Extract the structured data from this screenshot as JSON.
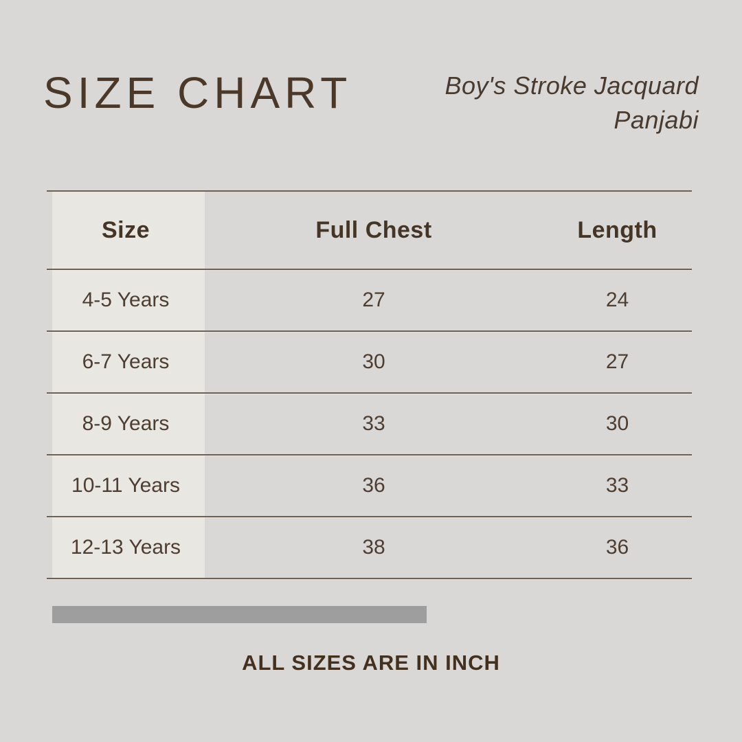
{
  "header": {
    "title": "SIZE CHART",
    "product_line1": "Boy's Stroke Jacquard",
    "product_line2": "Panjabi"
  },
  "table": {
    "columns": [
      "Size",
      "Full Chest",
      "Length"
    ],
    "rows": [
      {
        "size": "4-5 Years",
        "full_chest": "27",
        "length": "24"
      },
      {
        "size": "6-7 Years",
        "full_chest": "30",
        "length": "27"
      },
      {
        "size": "8-9 Years",
        "full_chest": "33",
        "length": "30"
      },
      {
        "size": "10-11 Years",
        "full_chest": "36",
        "length": "33"
      },
      {
        "size": "12-13 Years",
        "full_chest": "38",
        "length": "36"
      }
    ]
  },
  "footer": {
    "note": "ALL SIZES ARE IN INCH"
  },
  "colors": {
    "background": "#d9d8d6",
    "first_column_background": "#e9e7e1",
    "text_brown": "#4b3829",
    "rule_line": "#6e6052",
    "footer_bar_gray": "#9e9e9e"
  },
  "chart_data": {
    "type": "table",
    "title": "SIZE CHART",
    "subtitle": "Boy's Stroke Jacquard Panjabi",
    "columns": [
      "Size",
      "Full Chest",
      "Length"
    ],
    "rows": [
      [
        "4-5 Years",
        27,
        24
      ],
      [
        "6-7 Years",
        30,
        27
      ],
      [
        "8-9 Years",
        33,
        30
      ],
      [
        "10-11 Years",
        36,
        33
      ],
      [
        "12-13 Years",
        38,
        36
      ]
    ],
    "units": "inch",
    "note": "ALL SIZES ARE IN INCH"
  }
}
